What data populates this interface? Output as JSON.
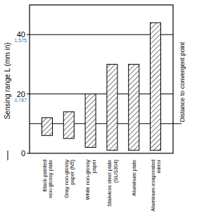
{
  "chart_data": {
    "type": "bar",
    "y_label": "Sensing range L (mm in)",
    "categories": [
      "Black-painted\nnon-glossy plate",
      "Gray non-glossy\npaper (N5)",
      "White non-glossy\npaper",
      "Stainless steel plate\n(SUS304)",
      "Aluminum plate",
      "Aluminum-evaporated\nmirror"
    ],
    "low": [
      6,
      5,
      2,
      1,
      1,
      1
    ],
    "high": [
      12,
      14,
      20,
      30,
      30,
      44
    ],
    "color": "#000000",
    "ylim": [
      0,
      50
    ],
    "yticks": [
      0,
      20,
      40
    ],
    "y2lim": [
      0,
      1.9685
    ],
    "y2ticks": [
      0.787,
      1.575
    ],
    "grid": true,
    "annotations": [
      {
        "value": 10,
        "text": "Distance to convergent point"
      }
    ]
  }
}
